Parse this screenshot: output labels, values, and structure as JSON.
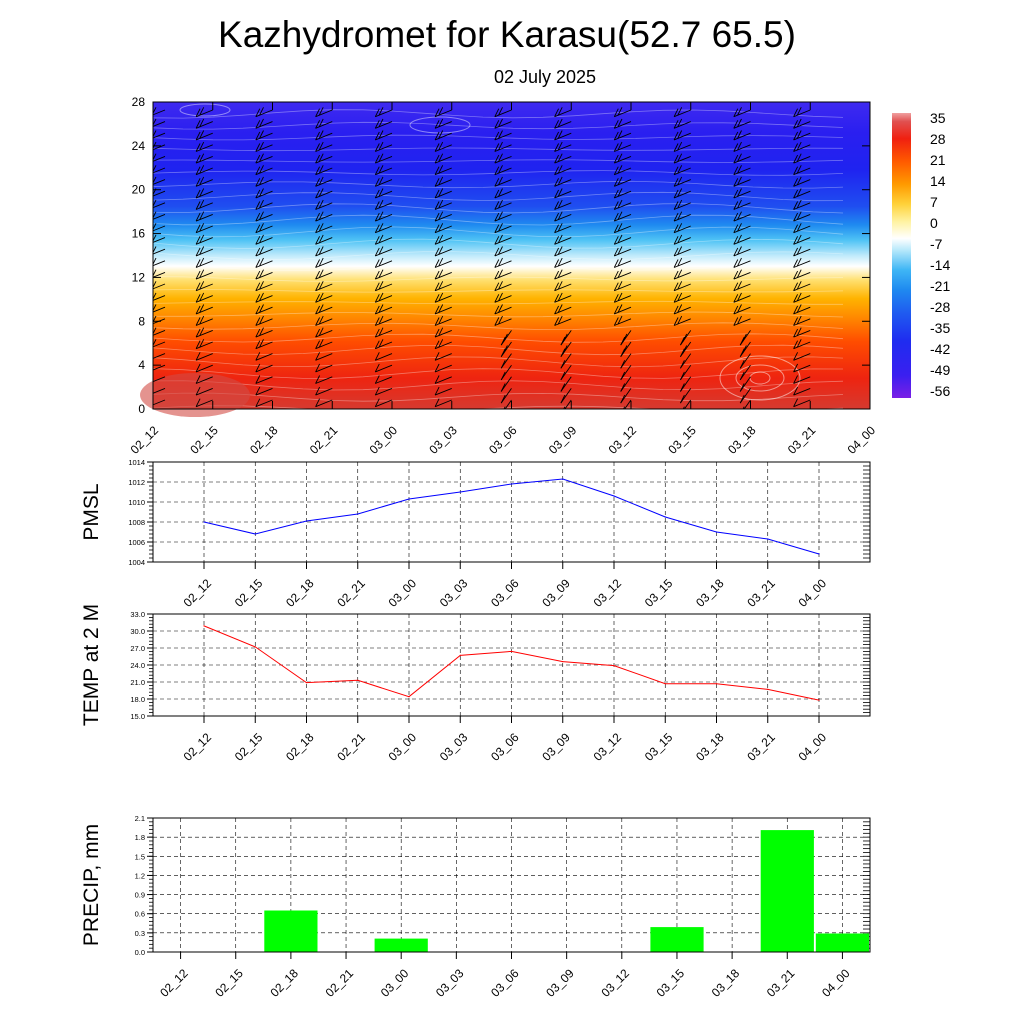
{
  "title": "Kazhydromet for Karasu(52.7 65.5)",
  "subtitle": "02 July 2025",
  "time_labels": [
    "02_12",
    "02_15",
    "02_18",
    "02_21",
    "03_00",
    "03_03",
    "03_06",
    "03_09",
    "03_12",
    "03_15",
    "03_18",
    "03_21",
    "04_00"
  ],
  "chart_data": [
    {
      "type": "heatmap",
      "name": "cross-section",
      "yticks": [
        "0",
        "4",
        "8",
        "12",
        "16",
        "20",
        "24",
        "28"
      ],
      "ylim": [
        0,
        28
      ],
      "colorbar_labels": [
        "35",
        "28",
        "21",
        "14",
        "7",
        "0",
        "-7",
        "-14",
        "-21",
        "-28",
        "-35",
        "-42",
        "-49",
        "-56"
      ],
      "colorscale": [
        "#d3322f",
        "#ef2a1a",
        "#ff5a00",
        "#ff8c00",
        "#ffb000",
        "#ffd93c",
        "#fff4a8",
        "#ffffff",
        "#b9e9fb",
        "#5ac8f5",
        "#2196f3",
        "#1f5cf0",
        "#1d2ff0",
        "#2a00e6",
        "#7a00e0"
      ],
      "wind_barbs": true,
      "grid": false
    },
    {
      "type": "line",
      "ylabel": "PMSL",
      "ylim": [
        1004,
        1014
      ],
      "yticks": [
        "1004",
        "1006",
        "1008",
        "1010",
        "1012",
        "1014"
      ],
      "values": [
        1008.0,
        1006.8,
        1008.1,
        1008.8,
        1010.3,
        1011.0,
        1011.8,
        1012.3,
        1010.6,
        1008.5,
        1007.0,
        1006.3,
        1004.8
      ],
      "color": "#0000ff",
      "grid": true
    },
    {
      "type": "line",
      "ylabel": "TEMP at 2 M",
      "ylim": [
        15,
        33
      ],
      "yticks": [
        "15.0",
        "18.0",
        "21.0",
        "24.0",
        "27.0",
        "30.0",
        "33.0"
      ],
      "values": [
        30.9,
        27.2,
        20.9,
        21.3,
        18.4,
        25.7,
        26.4,
        24.6,
        23.9,
        20.7,
        20.7,
        19.7,
        17.8
      ],
      "color": "#ff0000",
      "grid": true
    },
    {
      "type": "bar",
      "ylabel": "PRECIP, mm",
      "ylim": [
        0,
        2.1
      ],
      "yticks": [
        "0.0",
        "0.3",
        "0.6",
        "0.9",
        "1.2",
        "1.5",
        "1.8",
        "2.1"
      ],
      "values": [
        0,
        0,
        0.65,
        0,
        0.21,
        0,
        0,
        0,
        0,
        0.39,
        0,
        1.91,
        0.29
      ],
      "color": "#00ff00",
      "grid": true
    }
  ]
}
